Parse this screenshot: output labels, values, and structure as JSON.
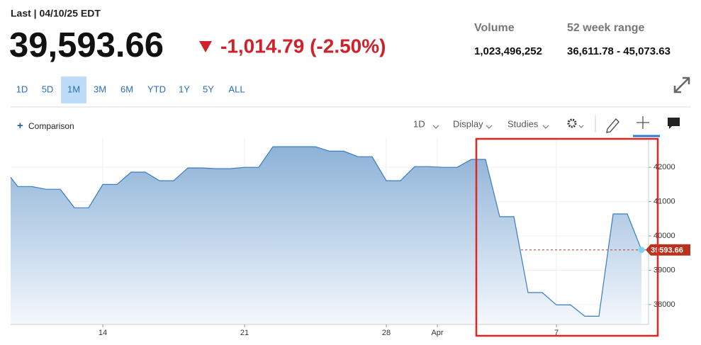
{
  "header": {
    "last_label": "Last | 04/10/25 EDT",
    "price": "39,593.66",
    "change": "-1,014.79 (-2.50%)",
    "volume_label": "Volume",
    "volume": "1,023,496,252",
    "range_label": "52 week range",
    "range": "36,611.78 - 45,073.63"
  },
  "range_buttons": [
    {
      "label": "1D"
    },
    {
      "label": "5D"
    },
    {
      "label": "1M",
      "active": true
    },
    {
      "label": "3M"
    },
    {
      "label": "6M"
    },
    {
      "label": "YTD"
    },
    {
      "label": "1Y"
    },
    {
      "label": "5Y"
    },
    {
      "label": "ALL"
    }
  ],
  "toolbar": {
    "comparison": "Comparison",
    "interval": "1D",
    "display": "Display",
    "studies": "Studies"
  },
  "chart_data": {
    "type": "area",
    "color": "#3a7cc0",
    "grid": true,
    "x": [
      -0.5,
      0,
      1,
      2,
      3,
      4,
      5,
      6,
      7,
      8,
      9,
      10,
      11,
      12,
      13,
      14,
      15,
      16,
      17,
      18,
      19,
      20,
      21,
      22,
      23,
      24,
      25,
      26,
      27,
      28,
      29,
      30,
      31,
      32,
      33,
      34,
      35,
      36,
      37,
      38,
      39,
      40,
      41,
      42,
      43,
      44
    ],
    "values": [
      41710,
      41440,
      41440,
      41360,
      41360,
      40820,
      40820,
      41500,
      41500,
      41860,
      41860,
      41610,
      41610,
      41980,
      41980,
      41960,
      41960,
      42000,
      42000,
      42600,
      42600,
      42600,
      42600,
      42470,
      42470,
      42310,
      42310,
      41610,
      41610,
      42020,
      42020,
      42000,
      42000,
      42230,
      42230,
      40560,
      40560,
      38350,
      38350,
      37990,
      37990,
      37660,
      37660,
      40640,
      40640,
      39593.66
    ],
    "xlim": [
      -0.5,
      44.5
    ],
    "ylim": [
      37420,
      42850
    ],
    "xticks": [
      {
        "value": 6,
        "label": "14"
      },
      {
        "value": 16,
        "label": "21"
      },
      {
        "value": 26,
        "label": "28"
      },
      {
        "value": 29.6,
        "label": "Apr"
      },
      {
        "value": 38,
        "label": "7"
      }
    ],
    "yticks": [
      38000,
      39000,
      40000,
      41000,
      42000
    ]
  }
}
